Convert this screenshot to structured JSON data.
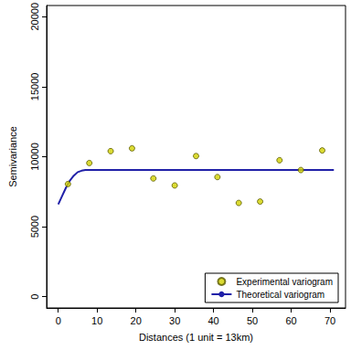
{
  "chart_data": {
    "type": "scatter",
    "xlabel": "Distances (1 unit = 13km)",
    "ylabel": "Semivariance",
    "series": [
      {
        "name": "Experimental variogram",
        "type": "scatter",
        "color": "#d2d200",
        "marker": "circle",
        "x": [
          2.5,
          8,
          13.5,
          19,
          24.5,
          30,
          35.5,
          41,
          46.5,
          52,
          57,
          62.5,
          68
        ],
        "values": [
          8050,
          9550,
          10400,
          10600,
          8450,
          7950,
          10050,
          8550,
          6700,
          6800,
          9750,
          9050,
          10450
        ]
      },
      {
        "name": "Theoretical variogram",
        "type": "line",
        "color": "#2020a8",
        "line_style": "solid",
        "x": [
          0,
          1,
          2,
          3,
          4,
          5,
          6,
          7,
          8,
          71
        ],
        "values": [
          6600,
          7200,
          7800,
          8300,
          8650,
          8900,
          9000,
          9050,
          9050,
          9050
        ]
      }
    ],
    "xlim": [
      -3,
      74
    ],
    "ylim": [
      -800,
      20800
    ],
    "xticks": [
      0,
      10,
      20,
      30,
      40,
      50,
      60,
      70
    ],
    "yticks": [
      0,
      5000,
      10000,
      15000,
      20000
    ],
    "grid": false,
    "legend": "lower right"
  }
}
